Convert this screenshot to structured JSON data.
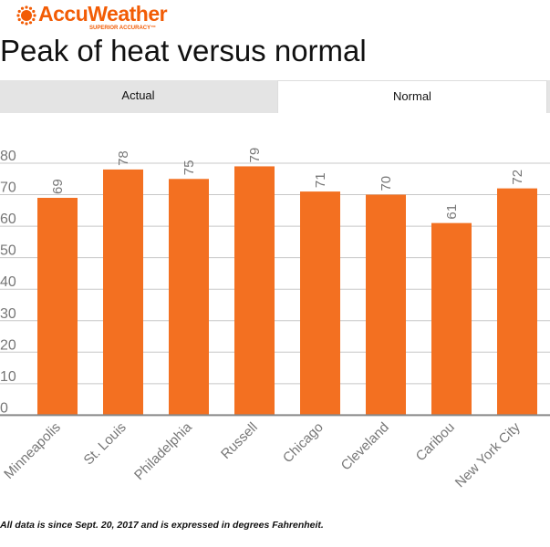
{
  "logo": {
    "name": "AccuWeather",
    "tagline": "SUPERIOR ACCURACY™"
  },
  "title": "Peak of heat versus normal",
  "tabs": [
    {
      "label": "Actual",
      "active": false
    },
    {
      "label": "Normal",
      "active": true
    }
  ],
  "note": "All data is since Sept. 20, 2017 and is expressed in degrees Fahrenheit.",
  "colors": {
    "bar": "#f37021",
    "brand": "#f25c05"
  },
  "chart_data": {
    "type": "bar",
    "categories": [
      "Minneapolis",
      "St. Louis",
      "Philadelphia",
      "Russell",
      "Chicago",
      "Cleveland",
      "Caribou",
      "New York City"
    ],
    "values": [
      69,
      78,
      75,
      79,
      71,
      70,
      61,
      72
    ],
    "ylim": [
      0,
      80
    ],
    "yticks": [
      0,
      10,
      20,
      30,
      40,
      50,
      60,
      70,
      80
    ],
    "grid": true,
    "data_labels": true
  }
}
